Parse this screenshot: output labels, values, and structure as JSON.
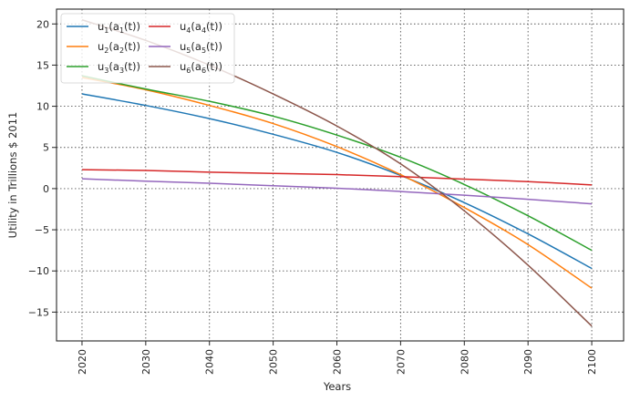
{
  "chart_data": {
    "type": "line",
    "xlabel": "Years",
    "ylabel": "Utility in Trillions $ 2011",
    "xlim": [
      2016,
      2105
    ],
    "ylim": [
      -18.5,
      21.8
    ],
    "xticks": [
      2020,
      2030,
      2040,
      2050,
      2060,
      2070,
      2080,
      2090,
      2100
    ],
    "yticks": [
      -15,
      -10,
      -5,
      0,
      5,
      10,
      15,
      20
    ],
    "grid": true,
    "legend_position": "top-left",
    "legend_columns": 2,
    "x": [
      2020,
      2030,
      2040,
      2050,
      2060,
      2070,
      2080,
      2090,
      2100
    ],
    "series": [
      {
        "name": "u1(a1(t))",
        "label_base": "u",
        "label_sub1": "1",
        "label_mid": "(a",
        "label_sub2": "1",
        "label_tail": "(t))",
        "color": "#1f77b4",
        "values": [
          11.5,
          10.1,
          8.5,
          6.6,
          4.4,
          1.6,
          -1.7,
          -5.5,
          -9.7
        ]
      },
      {
        "name": "u2(a2(t))",
        "label_base": "u",
        "label_sub1": "2",
        "label_mid": "(a",
        "label_sub2": "2",
        "label_tail": "(t))",
        "color": "#ff7f0e",
        "values": [
          13.5,
          12.0,
          10.1,
          7.9,
          5.1,
          1.7,
          -2.3,
          -6.8,
          -12.1
        ]
      },
      {
        "name": "u3(a3(t))",
        "label_base": "u",
        "label_sub1": "3",
        "label_mid": "(a",
        "label_sub2": "3",
        "label_tail": "(t))",
        "color": "#2ca02c",
        "values": [
          13.7,
          12.1,
          10.6,
          8.8,
          6.5,
          3.8,
          0.5,
          -3.3,
          -7.5
        ]
      },
      {
        "name": "u4(a4(t))",
        "label_base": "u",
        "label_sub1": "4",
        "label_mid": "(a",
        "label_sub2": "4",
        "label_tail": "(t))",
        "color": "#d62728",
        "values": [
          2.3,
          2.2,
          2.0,
          1.85,
          1.7,
          1.45,
          1.15,
          0.85,
          0.45
        ]
      },
      {
        "name": "u5(a5(t))",
        "label_base": "u",
        "label_sub1": "5",
        "label_mid": "(a",
        "label_sub2": "5",
        "label_tail": "(t))",
        "color": "#9467bd",
        "values": [
          1.2,
          0.9,
          0.65,
          0.35,
          0.05,
          -0.35,
          -0.8,
          -1.3,
          -1.85
        ]
      },
      {
        "name": "u6(a6(t))",
        "label_base": "u",
        "label_sub1": "6",
        "label_mid": "(a",
        "label_sub2": "6",
        "label_tail": "(t))",
        "color": "#8c564b",
        "values": [
          20.5,
          18.0,
          15.0,
          11.5,
          7.6,
          3.0,
          -2.7,
          -9.3,
          -16.7
        ]
      }
    ]
  }
}
